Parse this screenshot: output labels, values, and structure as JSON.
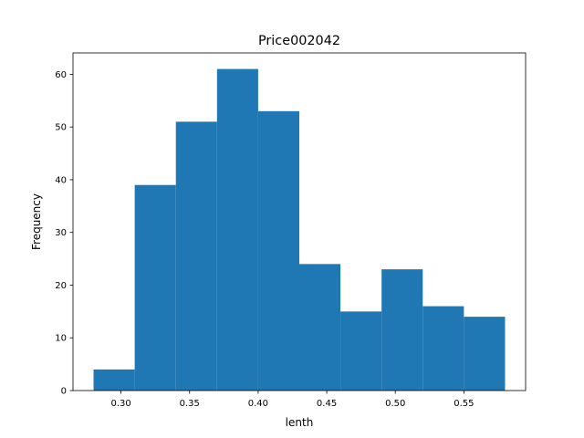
{
  "chart_data": {
    "type": "bar",
    "title": "Price002042",
    "xlabel": "lenth",
    "ylabel": "Frequency",
    "xlim": [
      0.265,
      0.595
    ],
    "ylim": [
      0,
      64.05
    ],
    "xticks": [
      0.3,
      0.35,
      0.4,
      0.45,
      0.5,
      0.55
    ],
    "xtick_labels": [
      "0.30",
      "0.35",
      "0.40",
      "0.45",
      "0.50",
      "0.55"
    ],
    "yticks": [
      0,
      10,
      20,
      30,
      40,
      50,
      60
    ],
    "ytick_labels": [
      "0",
      "10",
      "20",
      "30",
      "40",
      "50",
      "60"
    ],
    "bins": [
      {
        "x0": 0.28,
        "x1": 0.31,
        "count": 4
      },
      {
        "x0": 0.31,
        "x1": 0.34,
        "count": 39
      },
      {
        "x0": 0.34,
        "x1": 0.37,
        "count": 51
      },
      {
        "x0": 0.37,
        "x1": 0.4,
        "count": 61
      },
      {
        "x0": 0.4,
        "x1": 0.43,
        "count": 53
      },
      {
        "x0": 0.43,
        "x1": 0.46,
        "count": 24
      },
      {
        "x0": 0.46,
        "x1": 0.49,
        "count": 15
      },
      {
        "x0": 0.49,
        "x1": 0.52,
        "count": 23
      },
      {
        "x0": 0.52,
        "x1": 0.55,
        "count": 16
      },
      {
        "x0": 0.55,
        "x1": 0.58,
        "count": 14
      }
    ],
    "bar_color": "#1f77b4",
    "grid": false,
    "legend": "none"
  }
}
